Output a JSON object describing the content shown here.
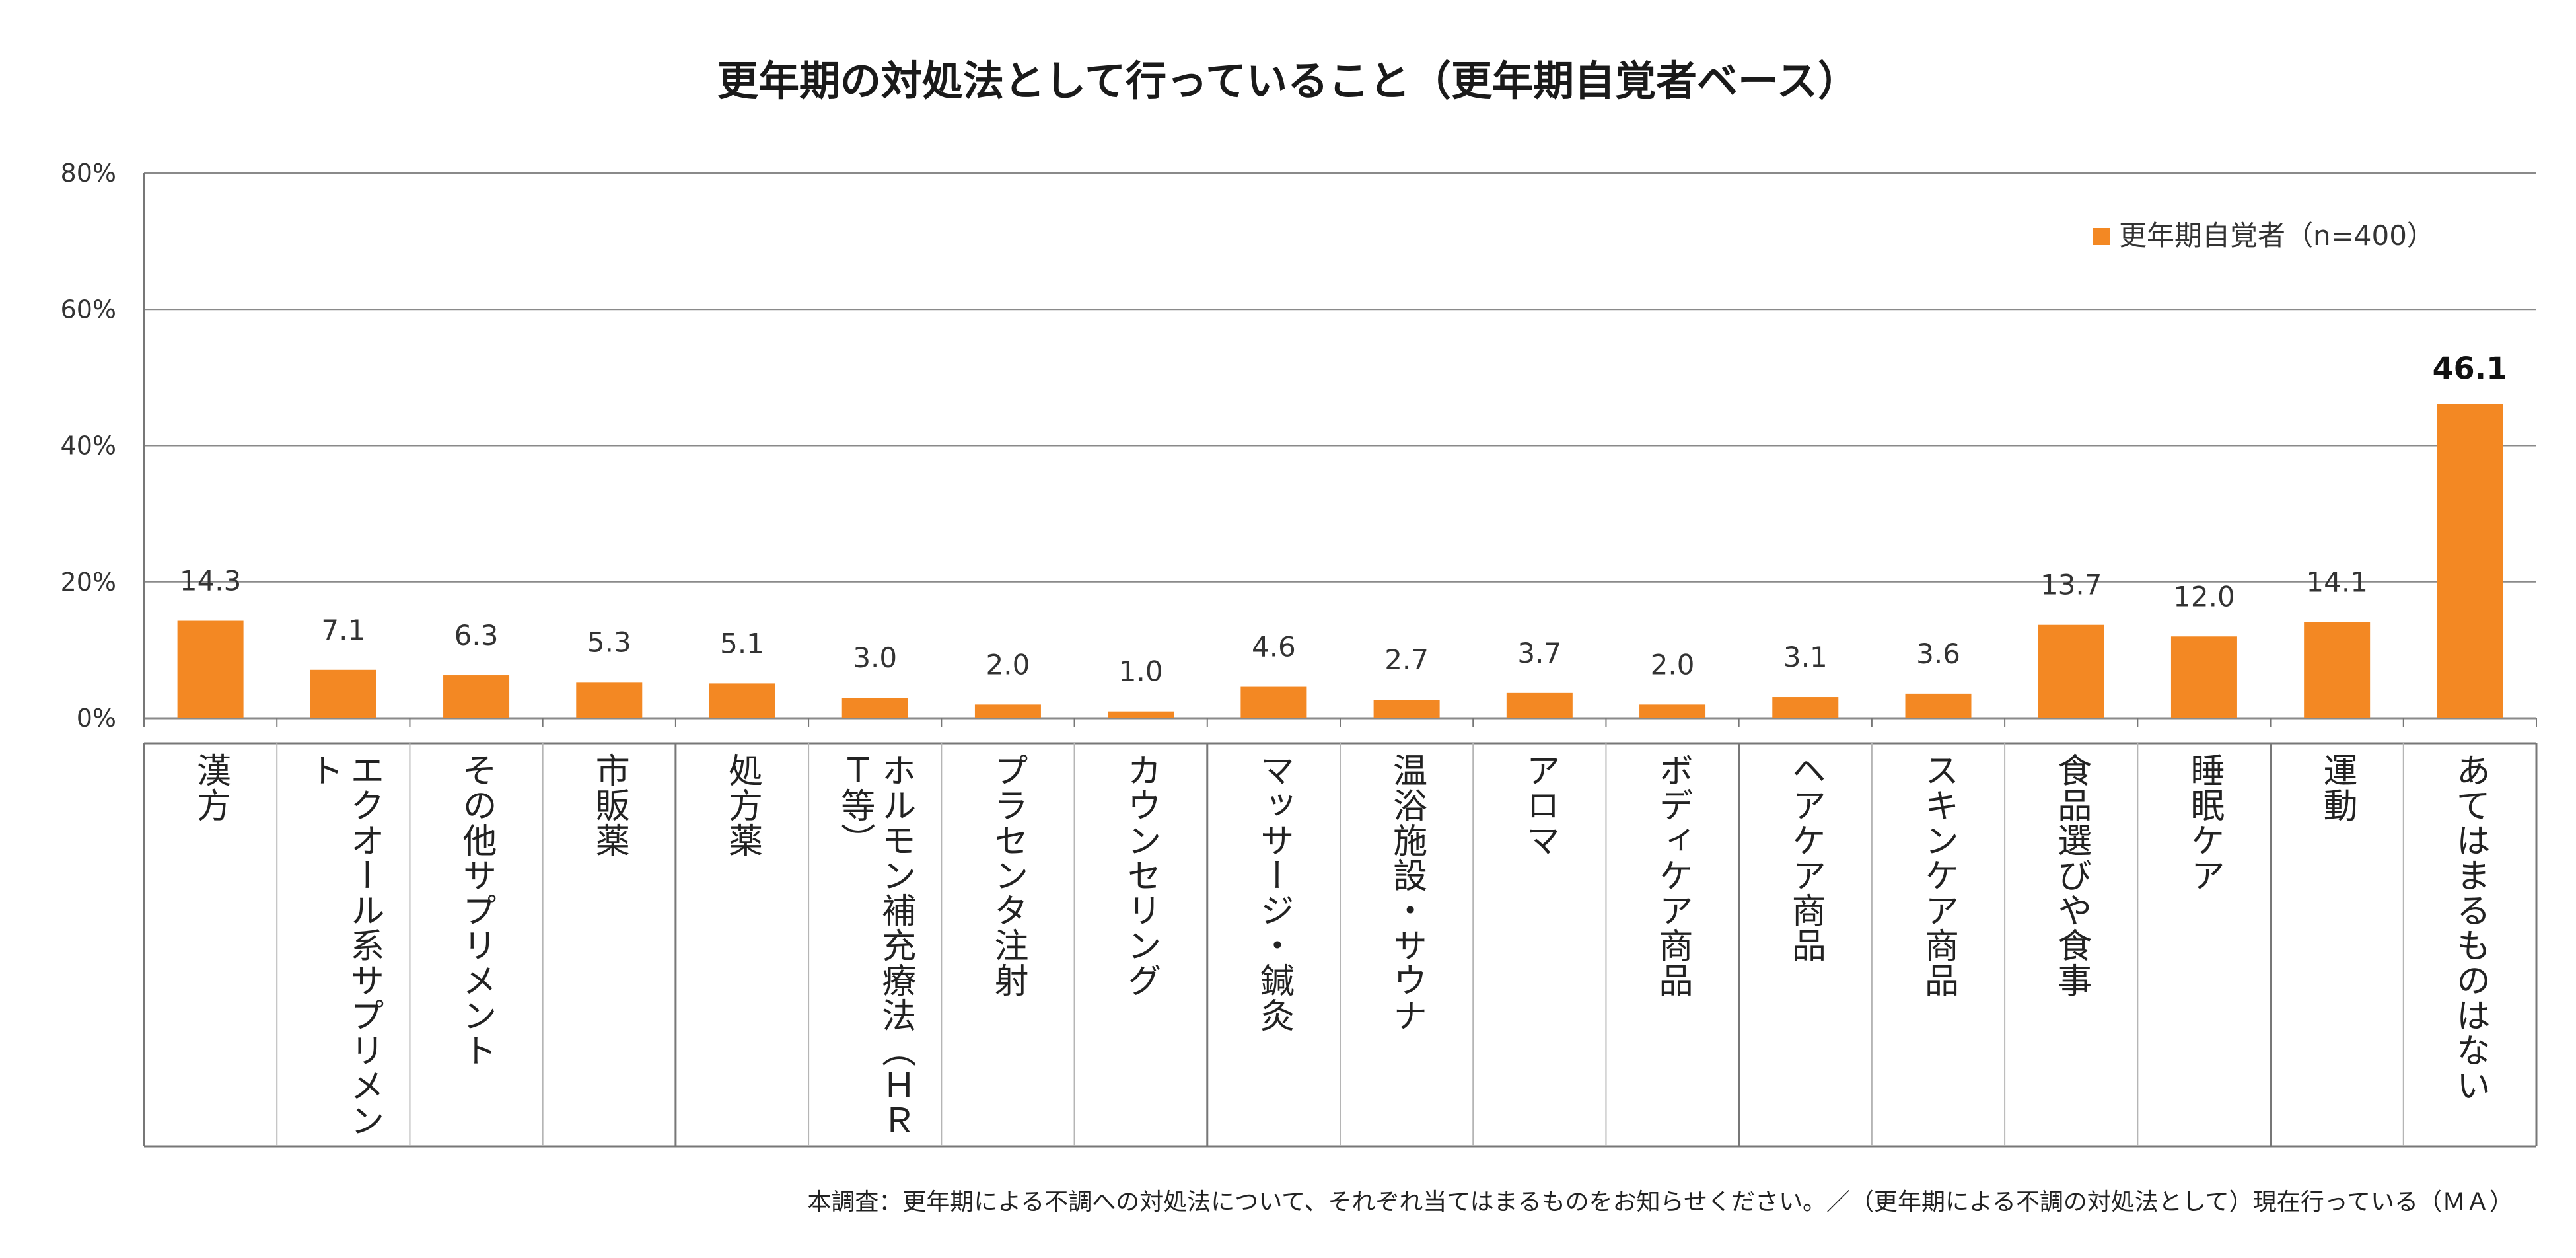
{
  "chart_data": {
    "type": "bar",
    "title": "更年期の対処法として行っていること（更年期自覚者ベース）",
    "categories": [
      "漢方",
      "エクオール系サプリメント",
      "その他サプリメント",
      "市販薬",
      "処方薬",
      "ホルモン補充療法（ＨＲＴ等）",
      "プラセンタ注射",
      "カウンセリング",
      "マッサージ・鍼灸",
      "温浴施設・サウナ",
      "アロマ",
      "ボディケア商品",
      "ヘアケア商品",
      "スキンケア商品",
      "食品選びや食事",
      "睡眠ケア",
      "運動",
      "あてはまるものはない"
    ],
    "series": [
      {
        "name": "更年期自覚者（n=400）",
        "values": [
          14.3,
          7.1,
          6.3,
          5.3,
          5.1,
          3.0,
          2.0,
          1.0,
          4.6,
          2.7,
          3.7,
          2.0,
          3.1,
          3.6,
          13.7,
          12.0,
          14.1,
          46.1
        ],
        "value_labels": [
          "14.3",
          "7.1",
          "6.3",
          "5.3",
          "5.1",
          "3.0",
          "2.0",
          "1.0",
          "4.6",
          "2.7",
          "3.7",
          "2.0",
          "3.1",
          "3.6",
          "13.7",
          "12.0",
          "14.1",
          "46.1"
        ],
        "highlight_index": 17
      }
    ],
    "ylim": [
      0,
      80
    ],
    "yticks": [
      0,
      20,
      40,
      60,
      80
    ],
    "ytick_labels": [
      "0%",
      "20%",
      "40%",
      "60%",
      "80%"
    ],
    "grid": true,
    "legend_position": "top-right",
    "xlabel": "",
    "ylabel": ""
  },
  "colors": {
    "bar": "#F38823",
    "grid": "#8a8a8a",
    "axis": "#777777"
  },
  "footnote": "本調査：更年期による不調への対処法について、それぞれ当てはまるものをお知らせください。／（更年期による不調の対処法として）現在行っている（ＭＡ）"
}
